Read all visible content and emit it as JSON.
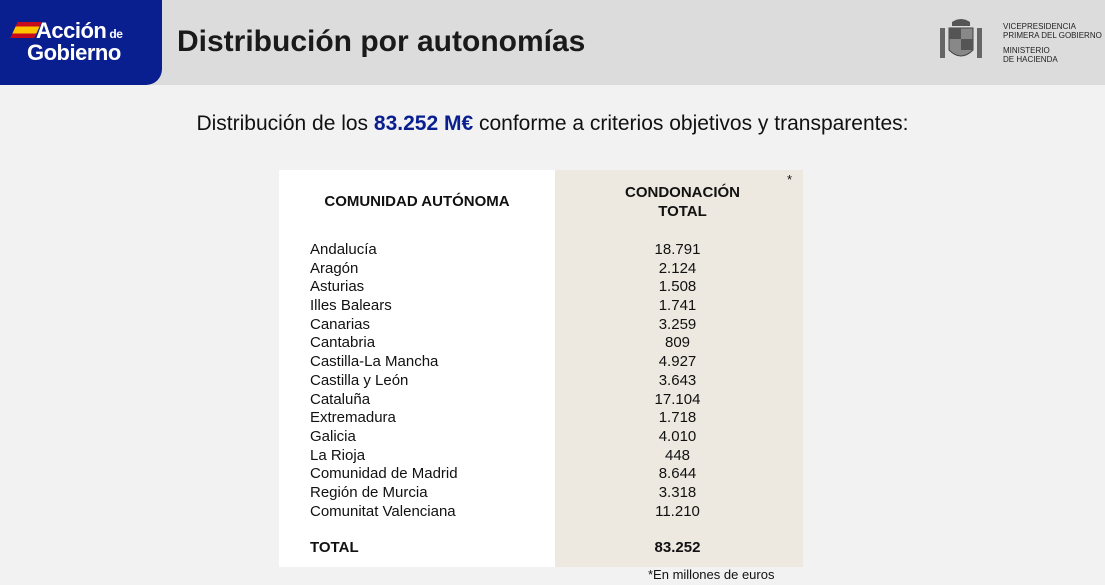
{
  "brand": {
    "line1": "Acción",
    "de": "de",
    "line2": "Gobierno"
  },
  "header": {
    "title": "Distribución por autonomías",
    "ministry_lines": [
      "VICEPRESIDENCIA",
      "PRIMERA DEL GOBIERNO",
      "MINISTERIO",
      "DE HACIENDA"
    ]
  },
  "subtitle": {
    "before": "Distribución de los ",
    "highlight": "83.252 M€",
    "after": " conforme a criterios objetivos y transparentes:"
  },
  "table": {
    "headers": [
      "COMUNIDAD AUTÓNOMA",
      "CONDONACIÓN TOTAL"
    ],
    "asterisk": "*",
    "rows": [
      {
        "name": "Andalucía",
        "value": "18.791"
      },
      {
        "name": "Aragón",
        "value": "2.124"
      },
      {
        "name": "Asturias",
        "value": "1.508"
      },
      {
        "name": "Illes Balears",
        "value": "1.741"
      },
      {
        "name": "Canarias",
        "value": "3.259"
      },
      {
        "name": "Cantabria",
        "value": "809"
      },
      {
        "name": "Castilla-La Mancha",
        "value": "4.927"
      },
      {
        "name": "Castilla y León",
        "value": "3.643"
      },
      {
        "name": "Cataluña",
        "value": "17.104"
      },
      {
        "name": "Extremadura",
        "value": "1.718"
      },
      {
        "name": "Galicia",
        "value": "4.010"
      },
      {
        "name": "La Rioja",
        "value": "448"
      },
      {
        "name": "Comunidad de Madrid",
        "value": "8.644"
      },
      {
        "name": "Región de Murcia",
        "value": "3.318"
      },
      {
        "name": "Comunitat Valenciana",
        "value": "11.210"
      }
    ],
    "total": {
      "name": "TOTAL",
      "value": "83.252"
    },
    "note": "*En millones de euros"
  },
  "colors": {
    "brand_blue": "#0a1f8f",
    "value_column": "#ede8e0"
  }
}
